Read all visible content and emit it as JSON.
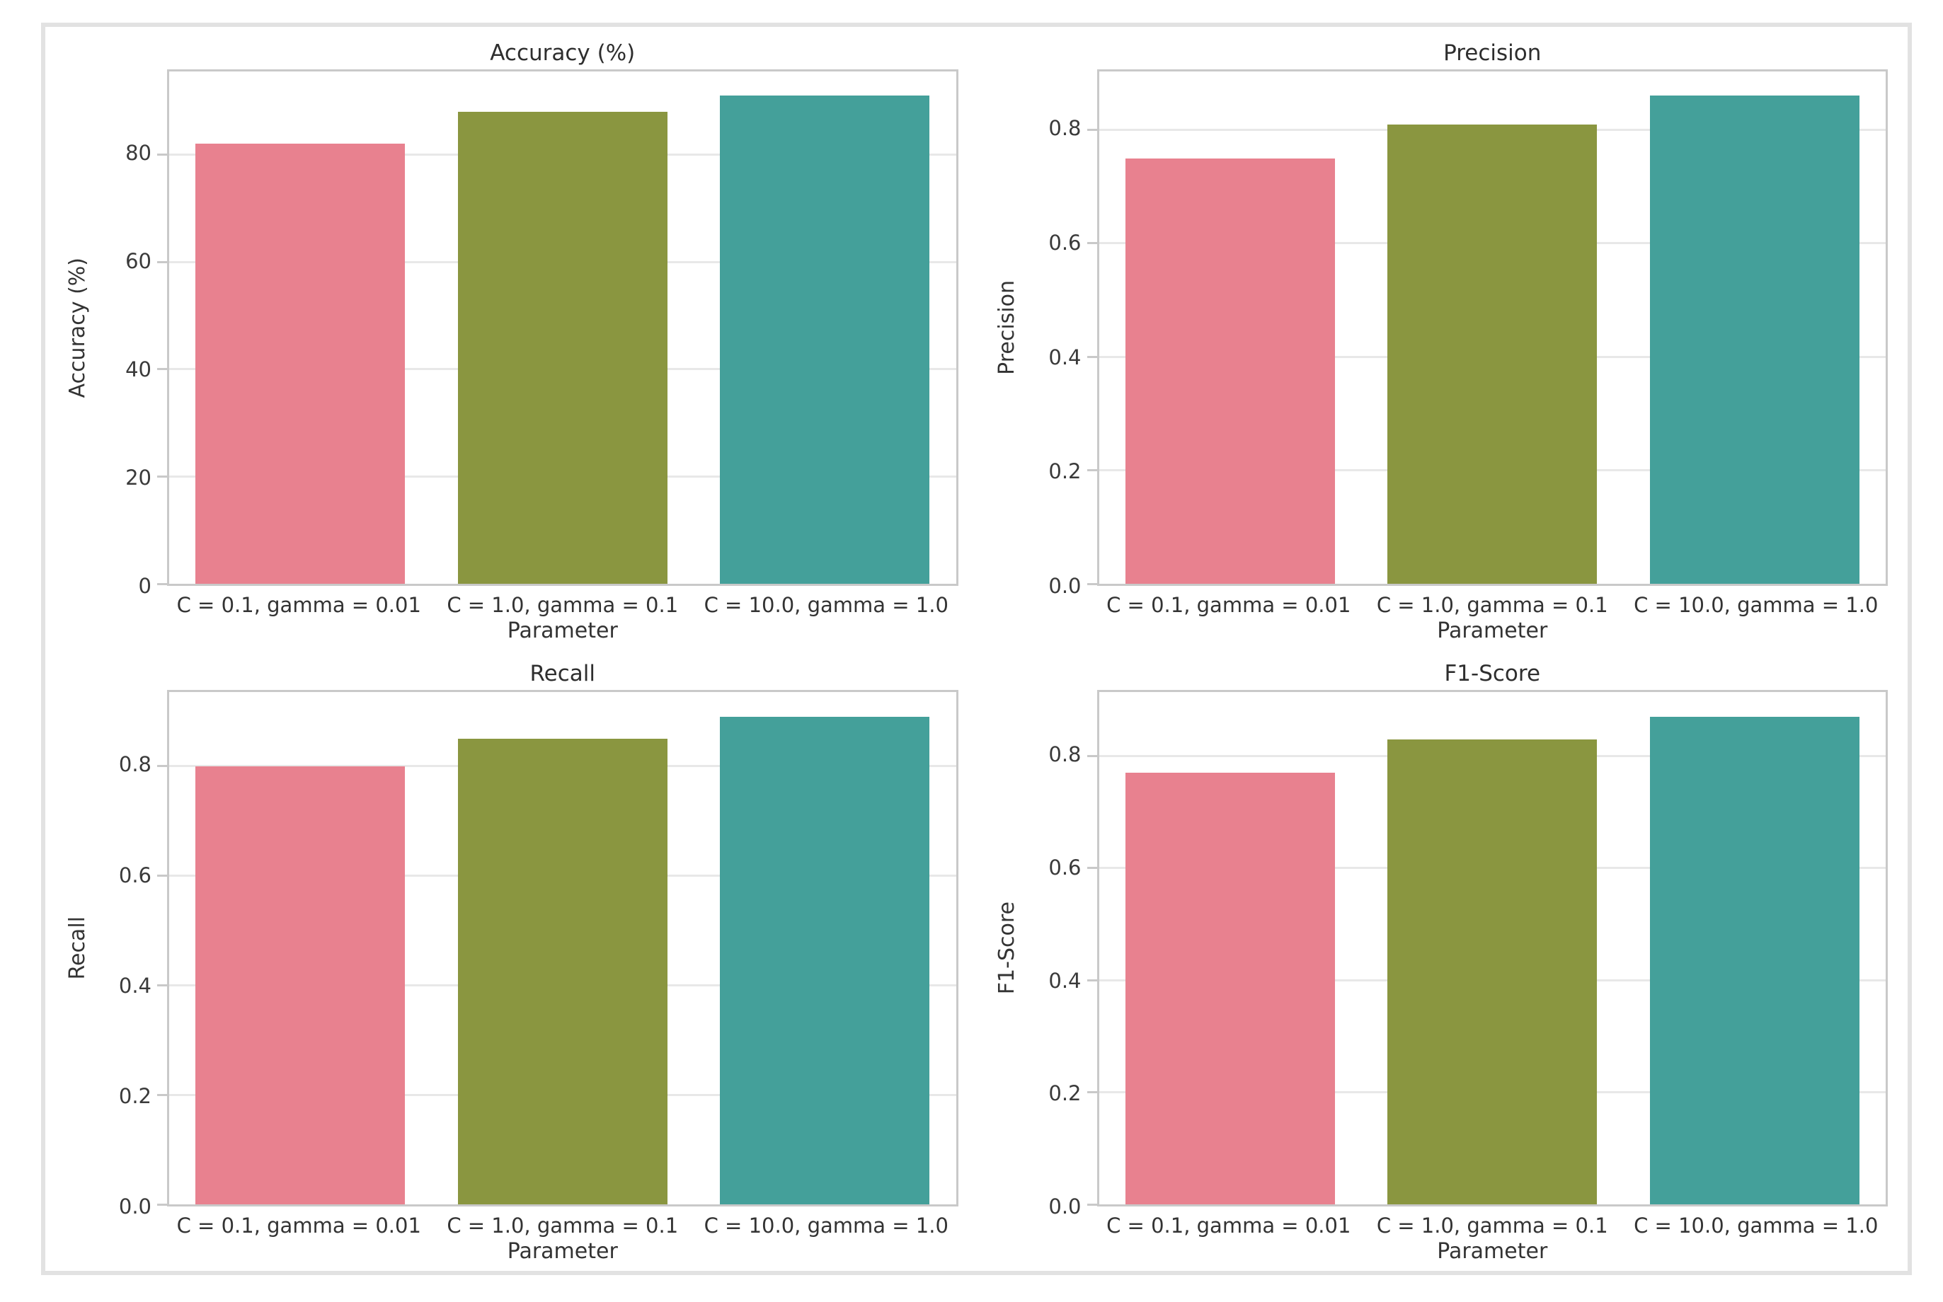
{
  "figure": {
    "background": "#ffffff",
    "frame_border_color": "#e2e2e2",
    "grid_color": "#e8e8e8",
    "spine_color": "#c9c9c9",
    "tick_text_color": "#3a3a3a",
    "title_text_color": "#2e2e2e"
  },
  "bar_colors": [
    "#e8818f",
    "#8a9640",
    "#44a09a"
  ],
  "chart_data": [
    {
      "type": "bar",
      "title": "Accuracy (%)",
      "xlabel": "Parameter",
      "ylabel": "Accuracy (%)",
      "categories": [
        "C = 0.1, gamma = 0.01",
        "C = 1.0, gamma = 0.1",
        "C = 10.0, gamma = 1.0"
      ],
      "values": [
        82,
        88,
        91
      ],
      "ylim": [
        0,
        95.5
      ],
      "yticks": [
        0,
        20,
        40,
        60,
        80
      ],
      "ytick_labels": [
        "0",
        "20",
        "40",
        "60",
        "80"
      ],
      "grid": true,
      "legend": null
    },
    {
      "type": "bar",
      "title": "Precision",
      "xlabel": "Parameter",
      "ylabel": "Precision",
      "categories": [
        "C = 0.1, gamma = 0.01",
        "C = 1.0, gamma = 0.1",
        "C = 10.0, gamma = 1.0"
      ],
      "values": [
        0.75,
        0.81,
        0.86
      ],
      "ylim": [
        0,
        0.903
      ],
      "yticks": [
        0,
        0.2,
        0.4,
        0.6,
        0.8
      ],
      "ytick_labels": [
        "0.0",
        "0.2",
        "0.4",
        "0.6",
        "0.8"
      ],
      "grid": true,
      "legend": null
    },
    {
      "type": "bar",
      "title": "Recall",
      "xlabel": "Parameter",
      "ylabel": "Recall",
      "categories": [
        "C = 0.1, gamma = 0.01",
        "C = 1.0, gamma = 0.1",
        "C = 10.0, gamma = 1.0"
      ],
      "values": [
        0.8,
        0.85,
        0.89
      ],
      "ylim": [
        0,
        0.935
      ],
      "yticks": [
        0,
        0.2,
        0.4,
        0.6,
        0.8
      ],
      "ytick_labels": [
        "0.0",
        "0.2",
        "0.4",
        "0.6",
        "0.8"
      ],
      "grid": true,
      "legend": null
    },
    {
      "type": "bar",
      "title": "F1-Score",
      "xlabel": "Parameter",
      "ylabel": "F1-Score",
      "categories": [
        "C = 0.1, gamma = 0.01",
        "C = 1.0, gamma = 0.1",
        "C = 10.0, gamma = 1.0"
      ],
      "values": [
        0.77,
        0.83,
        0.87
      ],
      "ylim": [
        0,
        0.914
      ],
      "yticks": [
        0,
        0.2,
        0.4,
        0.6,
        0.8
      ],
      "ytick_labels": [
        "0.0",
        "0.2",
        "0.4",
        "0.6",
        "0.8"
      ],
      "grid": true,
      "legend": null
    }
  ]
}
